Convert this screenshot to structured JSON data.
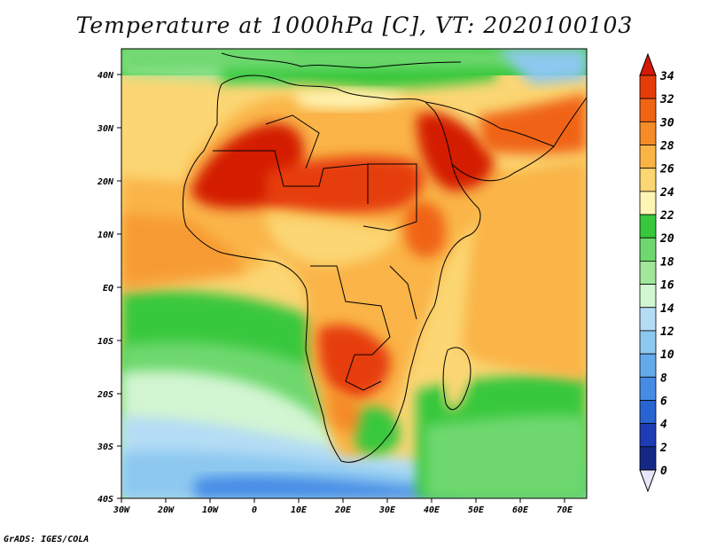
{
  "title": "Temperature at 1000hPa [C], VT: 2020100103",
  "credit": "GrADS: IGES/COLA",
  "map": {
    "lon_labels": [
      "30W",
      "20W",
      "10W",
      "0",
      "10E",
      "20E",
      "30E",
      "40E",
      "50E",
      "60E",
      "70E"
    ],
    "lat_labels": [
      "40N",
      "30N",
      "20N",
      "10N",
      "EQ",
      "10S",
      "20S",
      "30S",
      "40S"
    ]
  },
  "colorbar": {
    "labels": [
      "34",
      "32",
      "30",
      "28",
      "26",
      "24",
      "22",
      "20",
      "18",
      "16",
      "14",
      "12",
      "10",
      "8",
      "6",
      "4",
      "2",
      "0"
    ],
    "colors": [
      "#d41a06",
      "#e63c0a",
      "#f06414",
      "#f58c28",
      "#fab446",
      "#fbd673",
      "#fef5b4",
      "#37c83c",
      "#6ed86e",
      "#a0e69b",
      "#d2f5d2",
      "#b4dcf5",
      "#8cc8f0",
      "#64aaeb",
      "#468ce6",
      "#2864d2",
      "#1e3cb4",
      "#142886",
      "#0a1464"
    ]
  },
  "chart_data": {
    "type": "heatmap",
    "title": "Temperature at 1000hPa [C], VT: 2020100103",
    "x_range": [
      "30W",
      "75E"
    ],
    "y_range": [
      "40S",
      "45N"
    ],
    "value_range": [
      0,
      34
    ],
    "colorbar_ticks": [
      0,
      2,
      4,
      6,
      8,
      10,
      12,
      14,
      16,
      18,
      20,
      22,
      24,
      26,
      28,
      30,
      32,
      34
    ]
  }
}
